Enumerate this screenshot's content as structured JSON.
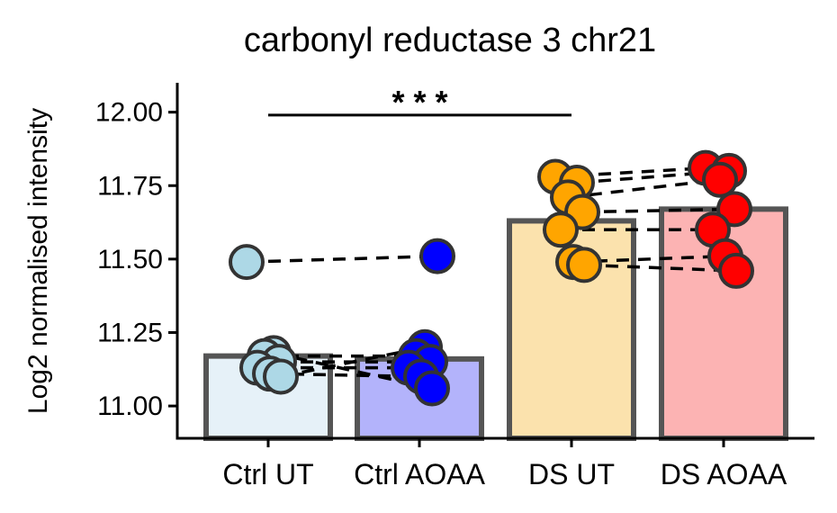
{
  "chart_data": {
    "type": "bar",
    "title": "carbonyl reductase 3 chr21",
    "xlabel": "",
    "ylabel": "Log2 normalised intensity",
    "categories": [
      "Ctrl UT",
      "Ctrl AOAA",
      "DS UT",
      "DS AOAA"
    ],
    "values": [
      11.17,
      11.16,
      11.63,
      11.67
    ],
    "bar_colors": [
      "#e6f1f8",
      "#b3b3fb",
      "#fbe2ad",
      "#fcb3b3"
    ],
    "point_colors": [
      "#add8e6",
      "#0000ff",
      "#ffa500",
      "#ff0000"
    ],
    "points": [
      [
        11.49,
        11.18,
        11.17,
        11.15,
        11.13,
        11.11,
        11.1
      ],
      [
        11.51,
        11.2,
        11.17,
        11.15,
        11.13,
        11.1,
        11.06
      ],
      [
        11.78,
        11.76,
        11.71,
        11.66,
        11.6,
        11.49,
        11.48
      ],
      [
        11.81,
        11.8,
        11.77,
        11.67,
        11.6,
        11.51,
        11.46
      ]
    ],
    "pairs": [
      [
        11.49,
        11.51
      ],
      [
        11.17,
        11.17
      ],
      [
        11.15,
        11.15
      ],
      [
        11.13,
        11.13
      ],
      [
        11.11,
        11.1
      ],
      [
        11.1,
        11.2
      ],
      [
        11.18,
        11.06
      ],
      [
        11.76,
        11.8
      ],
      [
        11.71,
        11.77
      ],
      [
        11.78,
        11.81
      ],
      [
        11.66,
        11.67
      ],
      [
        11.6,
        11.6
      ],
      [
        11.48,
        11.46
      ],
      [
        11.49,
        11.51
      ]
    ],
    "ylim": [
      10.89,
      12.1
    ],
    "yticks": [
      "11.00",
      "11.25",
      "11.50",
      "11.75",
      "12.00"
    ],
    "significance": {
      "label": "* * *",
      "from": "Ctrl UT",
      "to": "DS UT",
      "y": 11.99
    },
    "grid": false,
    "legend": "none"
  }
}
